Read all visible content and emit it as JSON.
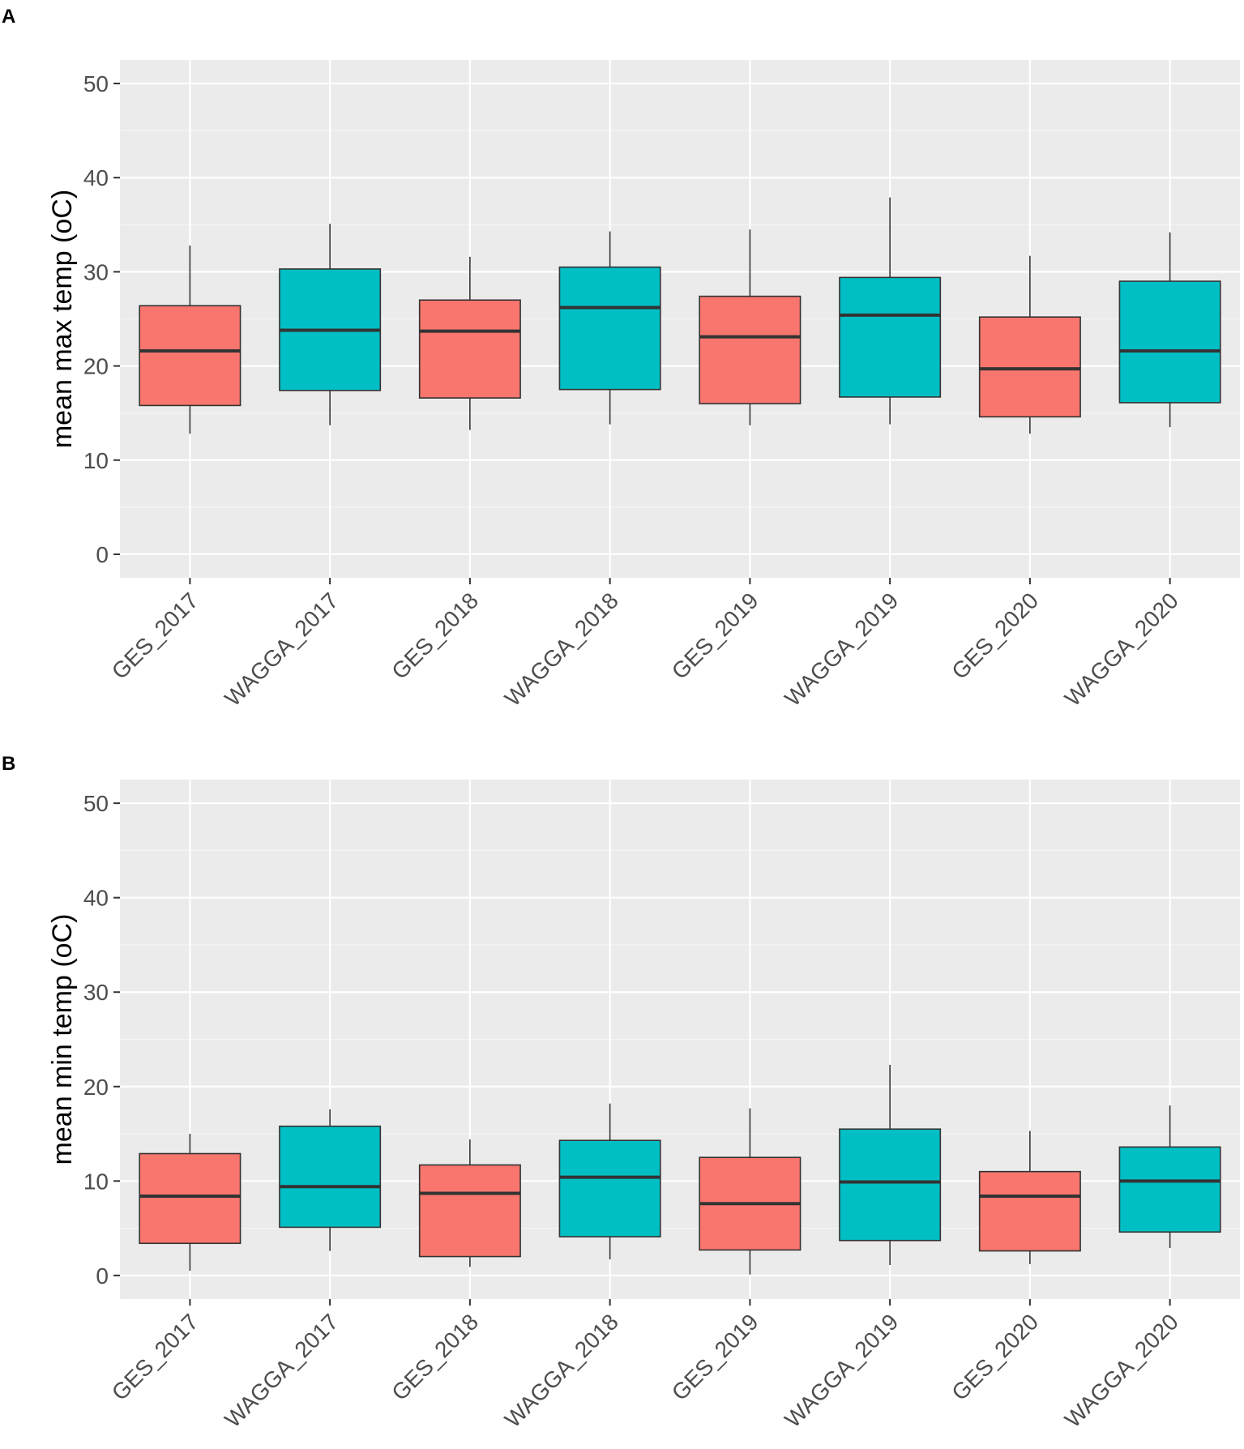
{
  "chart_data": [
    {
      "panel": "A",
      "type": "box",
      "ylabel": "mean max temp (oC)",
      "xlabel": "",
      "ylim": [
        -2.5,
        52.5
      ],
      "yticks": [
        0,
        10,
        20,
        30,
        40,
        50
      ],
      "categories": [
        "GES_2017",
        "WAGGA_2017",
        "GES_2018",
        "WAGGA_2018",
        "GES_2019",
        "WAGGA_2019",
        "GES_2020",
        "WAGGA_2020"
      ],
      "groups": [
        "GES",
        "WAGGA",
        "GES",
        "WAGGA",
        "GES",
        "WAGGA",
        "GES",
        "WAGGA"
      ],
      "colors": {
        "GES": "#F8766D",
        "WAGGA": "#00BFC4"
      },
      "boxes": [
        {
          "min": 12.8,
          "q1": 15.8,
          "median": 21.6,
          "q3": 26.4,
          "max": 32.8
        },
        {
          "min": 13.7,
          "q1": 17.4,
          "median": 23.8,
          "q3": 30.3,
          "max": 35.1
        },
        {
          "min": 13.2,
          "q1": 16.6,
          "median": 23.7,
          "q3": 27.0,
          "max": 31.6
        },
        {
          "min": 13.8,
          "q1": 17.5,
          "median": 26.2,
          "q3": 30.5,
          "max": 34.3
        },
        {
          "min": 13.7,
          "q1": 16.0,
          "median": 23.1,
          "q3": 27.4,
          "max": 34.5
        },
        {
          "min": 13.8,
          "q1": 16.7,
          "median": 25.4,
          "q3": 29.4,
          "max": 37.9
        },
        {
          "min": 12.8,
          "q1": 14.6,
          "median": 19.7,
          "q3": 25.2,
          "max": 31.7
        },
        {
          "min": 13.5,
          "q1": 16.1,
          "median": 21.6,
          "q3": 29.0,
          "max": 34.2
        }
      ]
    },
    {
      "panel": "B",
      "type": "box",
      "ylabel": "mean min temp (oC)",
      "xlabel": "",
      "ylim": [
        -2.5,
        52.5
      ],
      "yticks": [
        0,
        10,
        20,
        30,
        40,
        50
      ],
      "categories": [
        "GES_2017",
        "WAGGA_2017",
        "GES_2018",
        "WAGGA_2018",
        "GES_2019",
        "WAGGA_2019",
        "GES_2020",
        "WAGGA_2020"
      ],
      "groups": [
        "GES",
        "WAGGA",
        "GES",
        "WAGGA",
        "GES",
        "WAGGA",
        "GES",
        "WAGGA"
      ],
      "colors": {
        "GES": "#F8766D",
        "WAGGA": "#00BFC4"
      },
      "boxes": [
        {
          "min": 0.5,
          "q1": 3.4,
          "median": 8.4,
          "q3": 12.9,
          "max": 15.0
        },
        {
          "min": 2.6,
          "q1": 5.1,
          "median": 9.4,
          "q3": 15.8,
          "max": 17.6
        },
        {
          "min": 0.9,
          "q1": 2.0,
          "median": 8.7,
          "q3": 11.7,
          "max": 14.4
        },
        {
          "min": 1.7,
          "q1": 4.1,
          "median": 10.4,
          "q3": 14.3,
          "max": 18.2
        },
        {
          "min": 0.1,
          "q1": 2.7,
          "median": 7.6,
          "q3": 12.5,
          "max": 17.7
        },
        {
          "min": 1.1,
          "q1": 3.7,
          "median": 9.9,
          "q3": 15.5,
          "max": 22.3
        },
        {
          "min": 1.2,
          "q1": 2.6,
          "median": 8.4,
          "q3": 11.0,
          "max": 15.3
        },
        {
          "min": 2.9,
          "q1": 4.6,
          "median": 10.0,
          "q3": 13.6,
          "max": 18.0
        }
      ]
    }
  ]
}
